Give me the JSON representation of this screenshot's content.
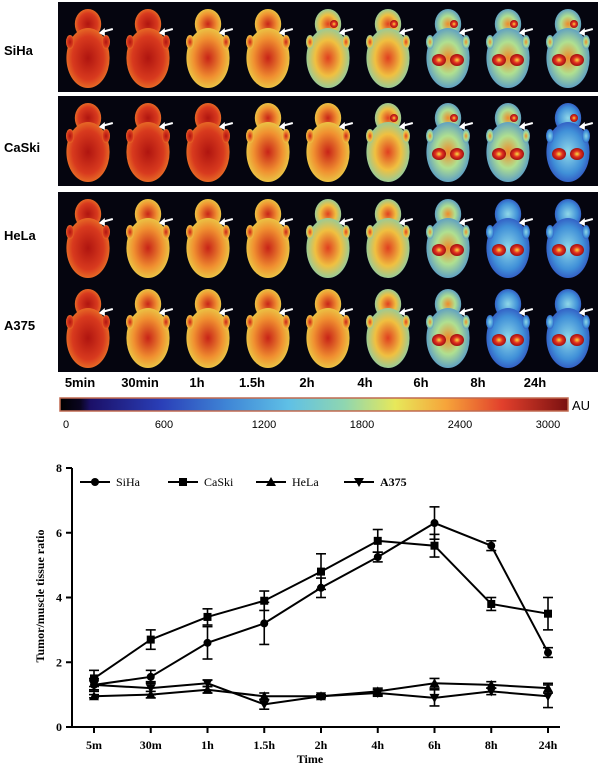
{
  "imaging_panel": {
    "rows": [
      "SiHa",
      "CaSki",
      "HeLa",
      "A375"
    ],
    "time_points": [
      "5min",
      "30min",
      "1h",
      "1.5h",
      "2h",
      "4h",
      "6h",
      "8h",
      "24h"
    ],
    "colorbar": {
      "ticks": [
        "0",
        "600",
        "1200",
        "1800",
        "2400",
        "3000"
      ],
      "unit": "AU"
    }
  },
  "chart_data": {
    "type": "line",
    "title": "",
    "xlabel": "Time",
    "ylabel": "Tumor/muscle tissue ratio",
    "categories": [
      "5m",
      "30m",
      "1h",
      "1.5h",
      "2h",
      "4h",
      "6h",
      "8h",
      "24h"
    ],
    "ylim": [
      0,
      8
    ],
    "yticks": [
      0,
      2,
      4,
      6,
      8
    ],
    "legend_position": "top",
    "series": [
      {
        "name": "SiHa",
        "marker": "circle",
        "values": [
          1.3,
          1.55,
          2.6,
          3.2,
          4.3,
          5.25,
          6.3,
          5.6,
          2.3
        ],
        "errors": [
          0.2,
          0.2,
          0.5,
          0.65,
          0.3,
          0.15,
          0.5,
          0.15,
          0.15
        ]
      },
      {
        "name": "CaSki",
        "marker": "square",
        "values": [
          1.5,
          2.7,
          3.4,
          3.9,
          4.8,
          5.75,
          5.6,
          3.8,
          3.5
        ],
        "errors": [
          0.25,
          0.3,
          0.25,
          0.3,
          0.55,
          0.35,
          0.35,
          0.2,
          0.5
        ]
      },
      {
        "name": "HeLa",
        "marker": "triangle-up",
        "values": [
          0.95,
          1.0,
          1.15,
          0.95,
          0.95,
          1.1,
          1.35,
          1.3,
          1.2
        ],
        "errors": [
          0.05,
          0.1,
          0.1,
          0.1,
          0.05,
          0.1,
          0.15,
          0.1,
          0.15
        ]
      },
      {
        "name": "A375",
        "marker": "triangle-down",
        "values": [
          1.3,
          1.2,
          1.35,
          0.7,
          0.95,
          1.05,
          0.9,
          1.1,
          0.95
        ],
        "errors": [
          0.15,
          0.2,
          0.1,
          0.15,
          0.05,
          0.1,
          0.25,
          0.1,
          0.35
        ]
      }
    ]
  }
}
